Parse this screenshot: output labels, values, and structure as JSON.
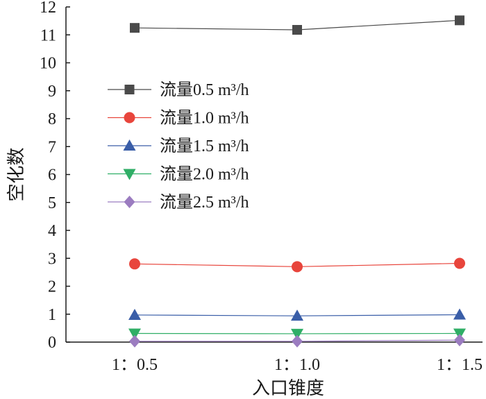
{
  "chart_data": {
    "type": "line",
    "title": "",
    "xlabel": "入口锥度",
    "ylabel": "空化数",
    "categories": [
      "1：0.5",
      "1：1.0",
      "1：1.5"
    ],
    "ylim": [
      0,
      12
    ],
    "yticks": [
      0,
      1,
      2,
      3,
      4,
      5,
      6,
      7,
      8,
      9,
      10,
      11,
      12
    ],
    "grid": false,
    "legend_position": "upper-left",
    "series": [
      {
        "name": "流量0.5 m³/h",
        "values": [
          11.25,
          11.18,
          11.52
        ],
        "color": "#4a4a4a",
        "marker": "square"
      },
      {
        "name": "流量1.0 m³/h",
        "values": [
          2.8,
          2.7,
          2.82
        ],
        "color": "#e8453c",
        "marker": "circle"
      },
      {
        "name": "流量1.5 m³/h",
        "values": [
          0.97,
          0.94,
          0.98
        ],
        "color": "#3a5ea8",
        "marker": "triangle-up"
      },
      {
        "name": "流量2.0 m³/h",
        "values": [
          0.31,
          0.3,
          0.31
        ],
        "color": "#2fae66",
        "marker": "triangle-down"
      },
      {
        "name": "流量2.5 m³/h",
        "values": [
          0.03,
          0.03,
          0.07
        ],
        "color": "#9b7cc0",
        "marker": "diamond"
      }
    ]
  }
}
